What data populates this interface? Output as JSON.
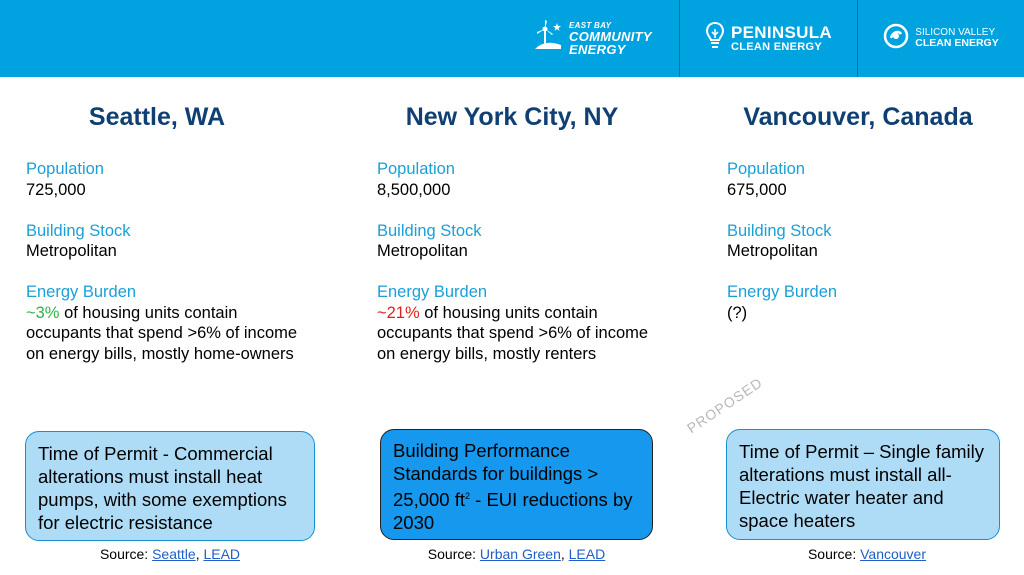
{
  "header": {
    "ebce": {
      "line1": "EAST BAY",
      "line2": "COMMUNITY",
      "line3": "ENERGY"
    },
    "pce": {
      "line1": "PENINSULA",
      "line2": "CLEAN ENERGY"
    },
    "svce": {
      "line1": "SILICON VALLEY",
      "line2": "CLEAN ENERGY"
    }
  },
  "columns": [
    {
      "title": "Seattle, WA",
      "population_label": "Population",
      "population": "725,000",
      "stock_label": "Building Stock",
      "stock": "Metropolitan",
      "burden_label": "Energy Burden",
      "burden_highlight": "~3%",
      "burden_line1": " of housing units contain",
      "burden_line2": "occupants that spend >6% of income",
      "burden_line3": "on energy bills, mostly home-owners",
      "policy": "Time of Permit - Commercial alterations must install heat pumps, with some exemptions for electric resistance",
      "source_label": "Source: ",
      "source_link1": "Seattle",
      "source_sep": ", ",
      "source_link2": "LEAD"
    },
    {
      "title": "New York City, NY",
      "population_label": "Population",
      "population": "8,500,000",
      "stock_label": "Building Stock",
      "stock": "Metropolitan",
      "burden_label": "Energy Burden",
      "burden_highlight": "~21%",
      "burden_line1": " of housing units contain",
      "burden_line2": "occupants that spend >6% of income",
      "burden_line3": "on energy bills, mostly renters",
      "policy_a": "Building Performance Standards for buildings > 25,000 ft",
      "policy_sup": "2",
      "policy_b": " - EUI reductions by 2030",
      "source_label": "Source: ",
      "source_link1": "Urban Green",
      "source_sep": ", ",
      "source_link2": "LEAD"
    },
    {
      "title": "Vancouver, Canada",
      "population_label": "Population",
      "population": "675,000",
      "stock_label": "Building Stock",
      "stock": "Metropolitan",
      "burden_label": "Energy Burden",
      "burden_value": "(?)",
      "stamp": "PROPOSED",
      "policy": "Time of Permit – Single family alterations must install all-Electric water heater and space heaters",
      "source_label": "Source: ",
      "source_link1": "Vancouver"
    }
  ],
  "colors": {
    "banner": "#00a3e0",
    "title": "#0f3f73",
    "label": "#1aa0d8",
    "good": "#2fb34a",
    "bad": "#e01f1f",
    "box_light": "#aedcf6",
    "box_dark": "#1698ee"
  }
}
